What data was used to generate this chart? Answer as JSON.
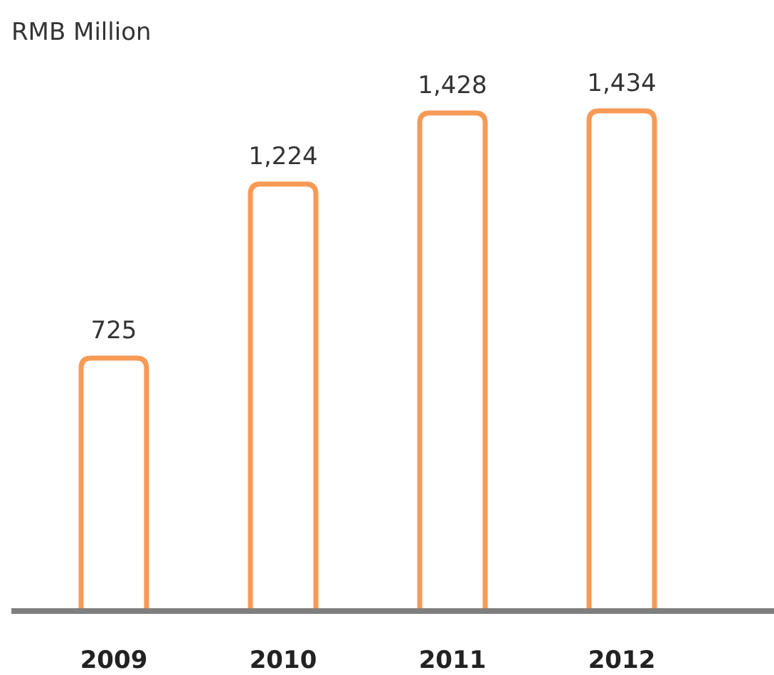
{
  "chart_data": {
    "type": "bar",
    "ylabel": "RMB Million",
    "categories": [
      "2009",
      "2010",
      "2011",
      "2012"
    ],
    "values": [
      725,
      1224,
      1428,
      1434
    ],
    "color": "#f79a55",
    "data_labels": true,
    "value_labels": [
      "725",
      "1,224",
      "1,428",
      "1,434"
    ]
  }
}
